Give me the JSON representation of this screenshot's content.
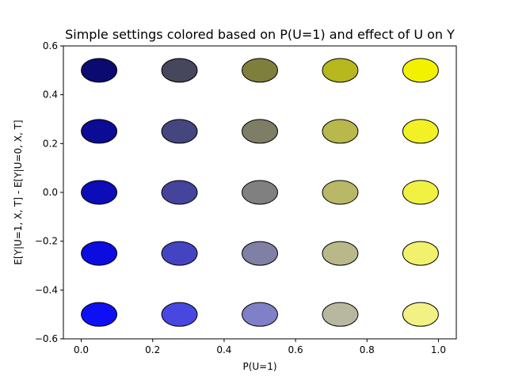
{
  "chart_data": {
    "type": "scatter",
    "title": "Simple settings colored based on P(U=1) and effect of U on Y",
    "xlabel": "P(U=1)",
    "ylabel": "E[Y|U=1, X, T] - E[Y|U=0, X, T]",
    "xlim": [
      -0.05,
      1.05
    ],
    "ylim": [
      -0.6,
      0.6
    ],
    "x_ticks": [
      0.0,
      0.2,
      0.4,
      0.6,
      0.8,
      1.0
    ],
    "x_tick_labels": [
      "0.0",
      "0.2",
      "0.4",
      "0.6",
      "0.8",
      "1.0"
    ],
    "y_ticks": [
      -0.6,
      -0.4,
      -0.2,
      0.0,
      0.2,
      0.4,
      0.6
    ],
    "y_tick_labels": [
      "−0.6",
      "−0.4",
      "−0.2",
      "0.0",
      "0.2",
      "0.4",
      "0.6"
    ],
    "grid": false,
    "edge_color": "#000000",
    "points": [
      {
        "x": 0.05,
        "y": 0.5,
        "color": "#0a0a70"
      },
      {
        "x": 0.275,
        "y": 0.5,
        "color": "#46465c"
      },
      {
        "x": 0.5,
        "y": 0.5,
        "color": "#7f7f3d"
      },
      {
        "x": 0.725,
        "y": 0.5,
        "color": "#b7b71e"
      },
      {
        "x": 0.95,
        "y": 0.5,
        "color": "#f2f200"
      },
      {
        "x": 0.05,
        "y": 0.25,
        "color": "#0b0b96"
      },
      {
        "x": 0.275,
        "y": 0.25,
        "color": "#45457f"
      },
      {
        "x": 0.5,
        "y": 0.25,
        "color": "#7e7e66"
      },
      {
        "x": 0.725,
        "y": 0.25,
        "color": "#b8b84c"
      },
      {
        "x": 0.95,
        "y": 0.25,
        "color": "#f1f126"
      },
      {
        "x": 0.05,
        "y": 0.0,
        "color": "#0c0cb8"
      },
      {
        "x": 0.275,
        "y": 0.0,
        "color": "#44449c"
      },
      {
        "x": 0.5,
        "y": 0.0,
        "color": "#808080"
      },
      {
        "x": 0.725,
        "y": 0.0,
        "color": "#b8b866"
      },
      {
        "x": 0.95,
        "y": 0.0,
        "color": "#f1f144"
      },
      {
        "x": 0.05,
        "y": -0.25,
        "color": "#0c0ce0"
      },
      {
        "x": 0.275,
        "y": -0.25,
        "color": "#4444c2"
      },
      {
        "x": 0.5,
        "y": -0.25,
        "color": "#8080a6"
      },
      {
        "x": 0.725,
        "y": -0.25,
        "color": "#b8b88a"
      },
      {
        "x": 0.95,
        "y": -0.25,
        "color": "#f1f16e"
      },
      {
        "x": 0.05,
        "y": -0.5,
        "color": "#0f0ff6"
      },
      {
        "x": 0.275,
        "y": -0.5,
        "color": "#4848e0"
      },
      {
        "x": 0.5,
        "y": -0.5,
        "color": "#8080c8"
      },
      {
        "x": 0.725,
        "y": -0.5,
        "color": "#b8b8a0"
      },
      {
        "x": 0.95,
        "y": -0.5,
        "color": "#f1f184"
      }
    ]
  }
}
